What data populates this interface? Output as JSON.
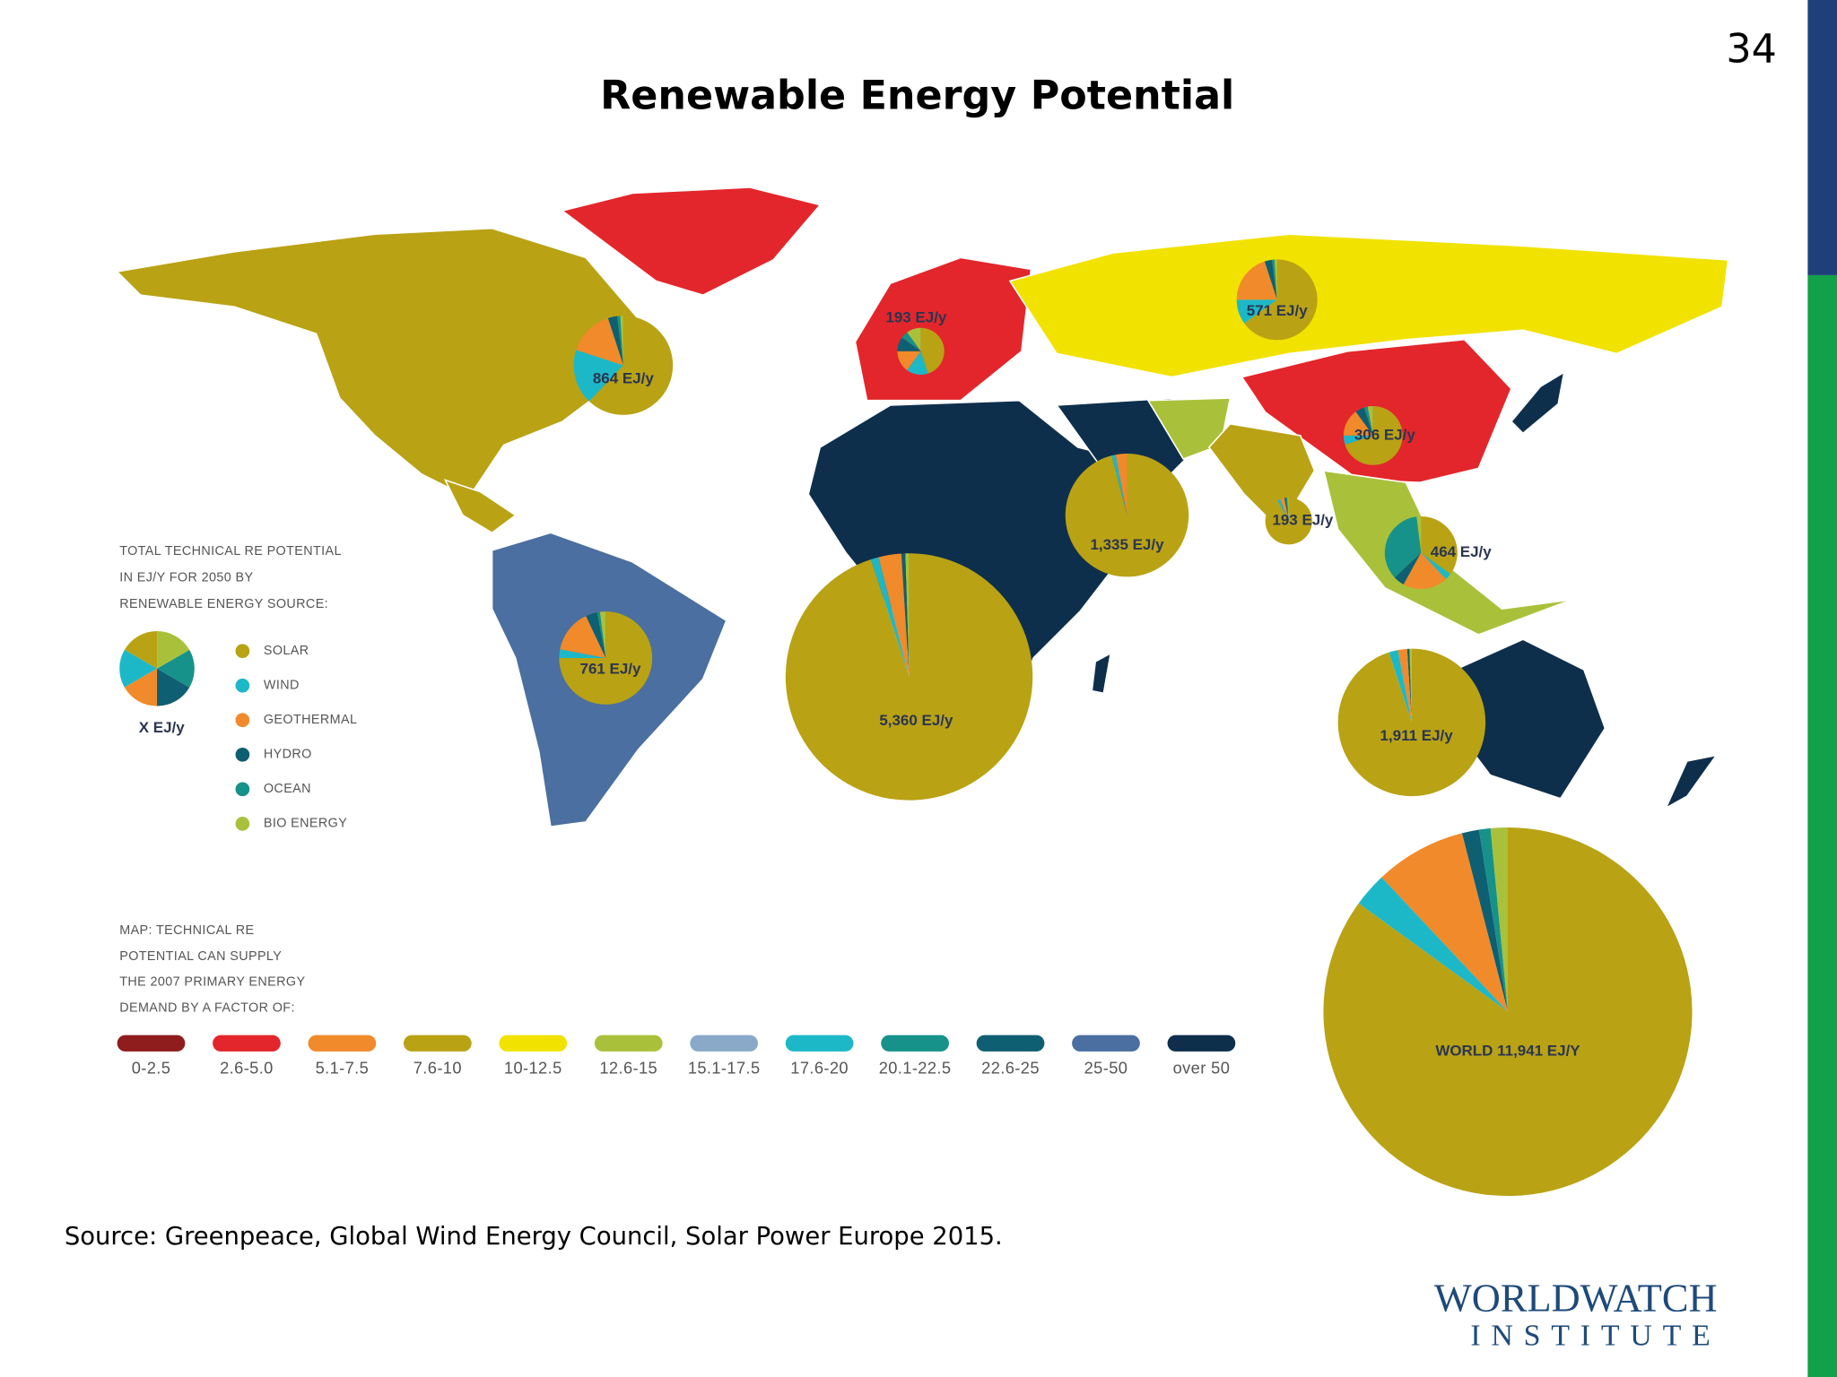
{
  "page_number": "34",
  "title": "Renewable Energy Potential",
  "source_legend": {
    "lines": [
      "TOTAL TECHNICAL RE POTENTIAL",
      "IN EJ/Y FOR 2050 BY",
      "RENEWABLE ENERGY SOURCE:"
    ],
    "sample_label": "X EJ/y",
    "sources": [
      {
        "name": "SOLAR",
        "color": "#b9a214"
      },
      {
        "name": "WIND",
        "color": "#1db8c8"
      },
      {
        "name": "GEOTHERMAL",
        "color": "#f08a2a"
      },
      {
        "name": "HYDRO",
        "color": "#0f5f72"
      },
      {
        "name": "OCEAN",
        "color": "#17928a"
      },
      {
        "name": "BIO ENERGY",
        "color": "#a9c13a"
      }
    ]
  },
  "factor_legend": {
    "lines": [
      "MAP: TECHNICAL RE",
      "POTENTIAL CAN SUPPLY",
      "THE 2007 PRIMARY ENERGY",
      "DEMAND BY A FACTOR OF:"
    ],
    "items": [
      {
        "label": "0-2.5",
        "color": "#8f1d1d"
      },
      {
        "label": "2.6-5.0",
        "color": "#e3262b"
      },
      {
        "label": "5.1-7.5",
        "color": "#f08a2a"
      },
      {
        "label": "7.6-10",
        "color": "#b9a214"
      },
      {
        "label": "10-12.5",
        "color": "#f2e200"
      },
      {
        "label": "12.6-15",
        "color": "#a9c13a"
      },
      {
        "label": "15.1-17.5",
        "color": "#8aa9c8"
      },
      {
        "label": "17.6-20",
        "color": "#1db8c8"
      },
      {
        "label": "20.1-22.5",
        "color": "#17928a"
      },
      {
        "label": "22.6-25",
        "color": "#0f5f72"
      },
      {
        "label": "25-50",
        "color": "#4a6fa0"
      },
      {
        "label": "over 50",
        "color": "#0e2f4c"
      }
    ]
  },
  "pies": [
    {
      "label": "864 EJ/y",
      "value": 864,
      "shares": [
        62,
        18,
        15,
        3,
        1,
        1
      ]
    },
    {
      "label": "193 EJ/y",
      "value": 193,
      "shares": [
        45,
        15,
        15,
        10,
        5,
        10
      ]
    },
    {
      "label": "571 EJ/y",
      "value": 571,
      "shares": [
        65,
        10,
        20,
        3,
        1,
        1
      ]
    },
    {
      "label": "306 EJ/y",
      "value": 306,
      "shares": [
        70,
        5,
        15,
        5,
        2,
        3
      ]
    },
    {
      "label": "1,335 EJ/y",
      "value": 1335,
      "shares": [
        96,
        1,
        3,
        0,
        0,
        0
      ]
    },
    {
      "label": "193 EJ/y",
      "value": 193,
      "shares": [
        92,
        2,
        3,
        1,
        1,
        1
      ]
    },
    {
      "label": "464 EJ/y",
      "value": 464,
      "shares": [
        35,
        3,
        20,
        5,
        35,
        2
      ]
    },
    {
      "label": "761 EJ/y",
      "value": 761,
      "shares": [
        75,
        3,
        15,
        4,
        1,
        2
      ]
    },
    {
      "label": "5,360 EJ/y",
      "value": 5360,
      "shares": [
        95,
        1,
        3,
        0.5,
        0,
        0.5
      ]
    },
    {
      "label": "1,911 EJ/y",
      "value": 1911,
      "shares": [
        95,
        2,
        2,
        0.5,
        0,
        0.5
      ]
    },
    {
      "label": "WORLD 11,941 EJ/Y",
      "value": 11941,
      "shares": [
        85,
        3,
        8,
        1.5,
        1,
        1.5
      ]
    }
  ],
  "source": "Source: Greenpeace, Global Wind Energy Council, Solar Power Europe 2015.",
  "logo": [
    "WORLDWATCH",
    "INSTITUTE"
  ]
}
